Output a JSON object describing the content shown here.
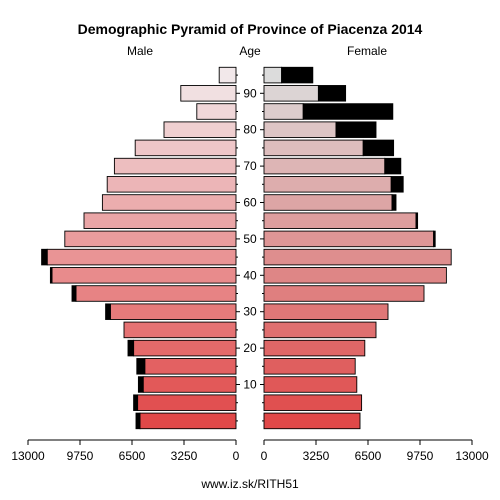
{
  "chart_data": {
    "type": "bar",
    "orientation": "horizontal-pyramid",
    "title": "Demographic Pyramid of Province of Piacenza 2014",
    "left_label": "Male",
    "center_label": "Age",
    "right_label": "Female",
    "footer": "www.iz.sk/RITH51",
    "age_groups": [
      "0-4",
      "5-9",
      "10-14",
      "15-19",
      "20-24",
      "25-29",
      "30-34",
      "35-39",
      "40-44",
      "45-49",
      "50-54",
      "55-59",
      "60-64",
      "65-69",
      "70-74",
      "75-79",
      "80-84",
      "85-89",
      "90-94",
      "95+"
    ],
    "age_ticks": [
      "10",
      "20",
      "30",
      "40",
      "50",
      "60",
      "70",
      "80",
      "90"
    ],
    "x_ticks_left": [
      "13000",
      "9750",
      "6500",
      "3250",
      "0"
    ],
    "x_ticks_right": [
      "0",
      "3250",
      "6500",
      "9750",
      "13000"
    ],
    "xlim": [
      0,
      13000
    ],
    "male": {
      "base": [
        6000,
        6150,
        5800,
        5700,
        6400,
        7000,
        7850,
        10000,
        11500,
        11800,
        10700,
        9500,
        8350,
        8050,
        7600,
        6300,
        4500,
        2450,
        3450,
        1050
      ],
      "surplus": [
        250,
        250,
        300,
        500,
        350,
        0,
        300,
        250,
        100,
        350,
        0,
        0,
        0,
        0,
        0,
        0,
        0,
        0,
        0,
        0
      ]
    },
    "female": {
      "base": [
        6000,
        6100,
        5800,
        5700,
        6300,
        7000,
        7750,
        10000,
        11400,
        11700,
        10600,
        9500,
        8000,
        7950,
        7550,
        6200,
        4500,
        2450,
        3400,
        1100
      ],
      "surplus": [
        0,
        0,
        0,
        0,
        0,
        0,
        0,
        0,
        0,
        0,
        100,
        100,
        250,
        750,
        1000,
        1900,
        2500,
        5600,
        1700,
        1950
      ]
    },
    "colors": {
      "young": "#e04848",
      "old": "#f2e8ea",
      "female_old": "#dcdcdc",
      "surplus": "#000000"
    }
  }
}
